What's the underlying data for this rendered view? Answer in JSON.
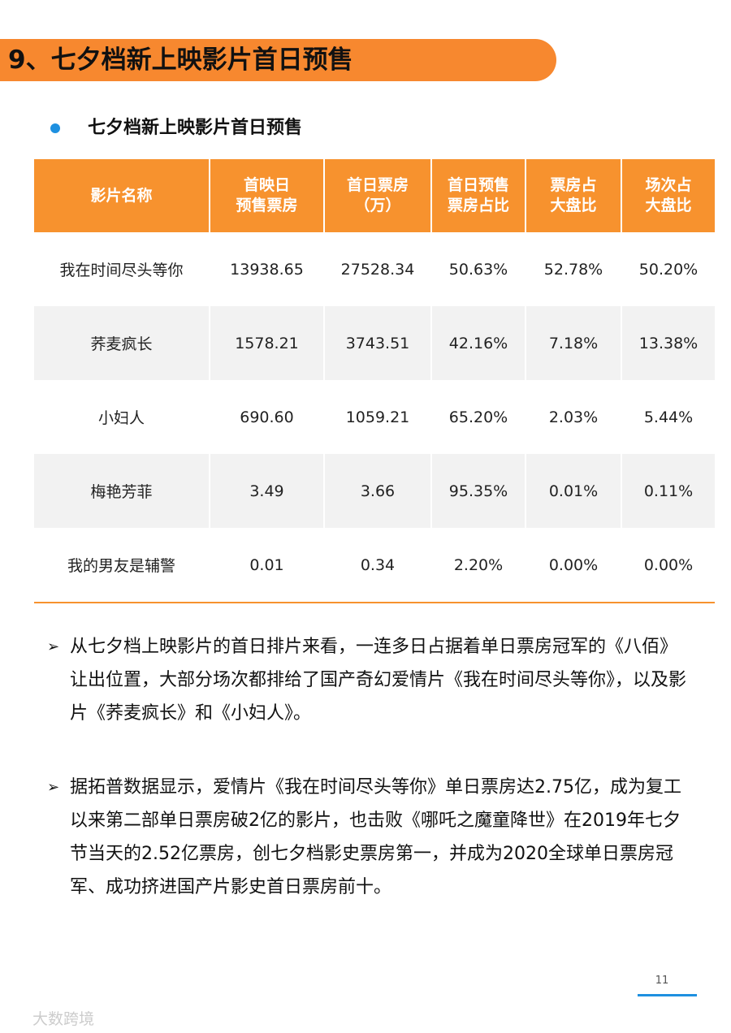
{
  "header": {
    "title": "9、七夕档新上映影片首日预售",
    "subtitle": "七夕档新上映影片首日预售"
  },
  "table": {
    "columns": [
      [
        "影片名称"
      ],
      [
        "首映日",
        "预售票房"
      ],
      [
        "首日票房",
        "（万）"
      ],
      [
        "首日预售",
        "票房占比"
      ],
      [
        "票房占",
        "大盘比"
      ],
      [
        "场次占",
        "大盘比"
      ]
    ],
    "rows": [
      [
        "我在时间尽头等你",
        "13938.65",
        "27528.34",
        "50.63%",
        "52.78%",
        "50.20%"
      ],
      [
        "荞麦疯长",
        "1578.21",
        "3743.51",
        "42.16%",
        "7.18%",
        "13.38%"
      ],
      [
        "小妇人",
        "690.60",
        "1059.21",
        "65.20%",
        "2.03%",
        "5.44%"
      ],
      [
        "梅艳芳菲",
        "3.49",
        "3.66",
        "95.35%",
        "0.01%",
        "0.11%"
      ],
      [
        "我的男友是辅警",
        "0.01",
        "0.34",
        "2.20%",
        "0.00%",
        "0.00%"
      ]
    ]
  },
  "bullets": [
    "从七夕档上映影片的首日排片来看，一连多日占据着单日票房冠军的《八佰》让出位置，大部分场次都排给了国产奇幻爱情片《我在时间尽头等你》，以及影片《荞麦疯长》和《小妇人》。",
    "据拓普数据显示，爱情片《我在时间尽头等你》单日票房达2.75亿，成为复工以来第二部单日票房破2亿的影片，也击败《哪吒之魔童降世》在2019年七夕节当天的2.52亿票房，创七夕档影史票房第一，并成为2020全球单日票房冠军、成功挤进国产片影史首日票房前十。"
  ],
  "footer": {
    "page": "11",
    "watermark": "大数跨境"
  }
}
